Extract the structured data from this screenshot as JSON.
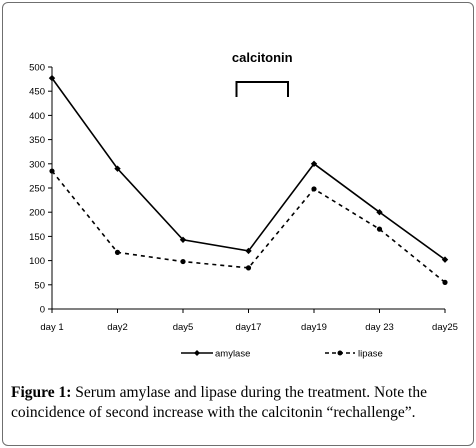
{
  "chart_data": {
    "type": "line",
    "categories": [
      "day 1",
      "day2",
      "day5",
      "day17",
      "day19",
      "day 23",
      "day25"
    ],
    "series": [
      {
        "name": "amylase",
        "values": [
          477,
          290,
          143,
          120,
          300,
          200,
          102
        ],
        "style": "solid"
      },
      {
        "name": "lipase",
        "values": [
          285,
          117,
          98,
          85,
          248,
          165,
          55
        ],
        "style": "dashed"
      }
    ],
    "ylim": [
      0,
      500
    ],
    "yticks": [
      "0",
      "50",
      "100",
      "150",
      "200",
      "250",
      "300",
      "350",
      "400",
      "450",
      "500"
    ],
    "grid": false,
    "legend_position": "bottom",
    "annotation": {
      "text": "calcitonin",
      "from_category": "day17",
      "to_category": "day19"
    }
  },
  "caption": {
    "label": "Figure 1:",
    "text": " Serum amylase and lipase during the treatment. Note the coincidence of second increase with the calcitonin “rechallenge”."
  },
  "colors": {
    "line": "#000000",
    "frame_border": "#6f6f6f"
  }
}
